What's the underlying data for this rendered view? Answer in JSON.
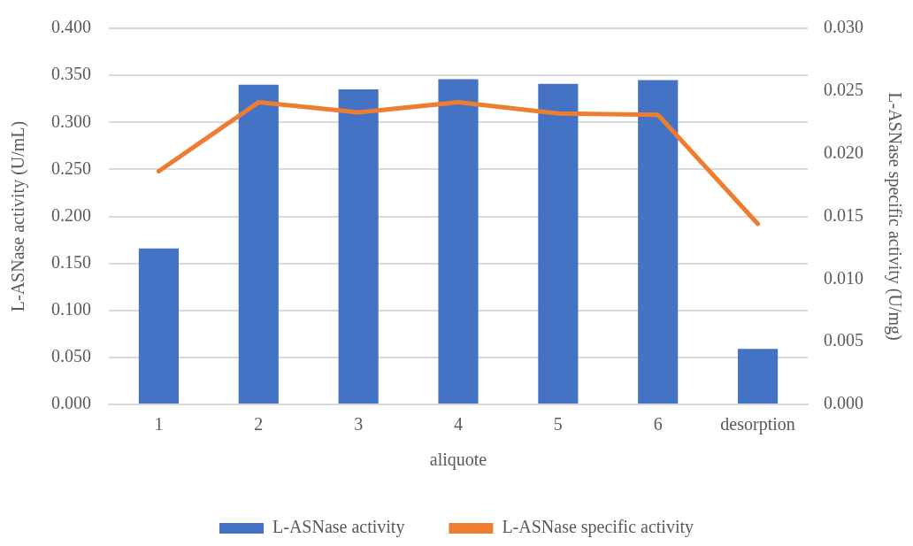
{
  "chart_data": {
    "type": "bar",
    "xlabel": "aliquote",
    "ylabel": "L-ASNase activity (U/mL)",
    "y2label": "L-ASNase specific activity (U/mg)",
    "categories": [
      "1",
      "2",
      "3",
      "4",
      "5",
      "6",
      "desorption"
    ],
    "series": [
      {
        "name": "L-ASNase activity",
        "color": "#4472c4",
        "values": [
          0.166,
          0.34,
          0.335,
          0.346,
          0.341,
          0.345,
          0.059
        ]
      },
      {
        "name": "L-ASNase specific activity",
        "type": "line",
        "axis": "y2",
        "color": "#ed7d31",
        "values": [
          0.0186,
          0.0241,
          0.0233,
          0.0241,
          0.0232,
          0.0231,
          0.0144
        ]
      }
    ],
    "ylim": [
      0,
      0.4
    ],
    "yticks": [
      {
        "value": 0,
        "label": "0.000"
      },
      {
        "value": 0.05,
        "label": "0.050"
      },
      {
        "value": 0.1,
        "label": "0.100"
      },
      {
        "value": 0.15,
        "label": "0.150"
      },
      {
        "value": 0.2,
        "label": "0.200"
      },
      {
        "value": 0.25,
        "label": "0.250"
      },
      {
        "value": 0.3,
        "label": "0.300"
      },
      {
        "value": 0.35,
        "label": "0.350"
      },
      {
        "value": 0.4,
        "label": "0.400"
      }
    ],
    "y2lim": [
      0,
      0.03
    ],
    "y2ticks": [
      {
        "value": 0,
        "label": "0.000"
      },
      {
        "value": 0.005,
        "label": "0.005"
      },
      {
        "value": 0.01,
        "label": "0.010"
      },
      {
        "value": 0.015,
        "label": "0.015"
      },
      {
        "value": 0.02,
        "label": "0.020"
      },
      {
        "value": 0.025,
        "label": "0.025"
      },
      {
        "value": 0.03,
        "label": "0.030"
      }
    ],
    "grid": "y",
    "legend": "bottom",
    "marker": "none",
    "line_style": "solid"
  }
}
